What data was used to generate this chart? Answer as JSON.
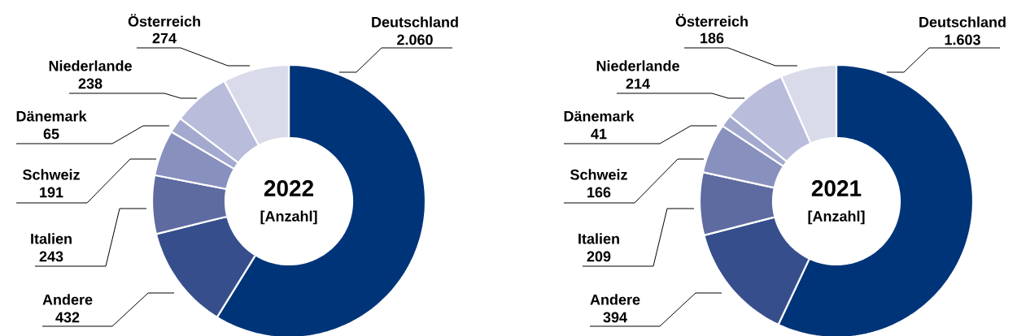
{
  "chart_data": [
    {
      "type": "donut",
      "title": "2022",
      "subtitle": "[Anzahl]",
      "categories": [
        "Deutschland",
        "Andere",
        "Italien",
        "Schweiz",
        "Dänemark",
        "Niederlande",
        "Österreich"
      ],
      "values": [
        2060,
        432,
        243,
        191,
        65,
        238,
        274
      ],
      "value_labels": [
        "2.060",
        "432",
        "243",
        "191",
        "65",
        "238",
        "274"
      ],
      "colors": [
        "#003478",
        "#364f8c",
        "#5e6ba1",
        "#8890bd",
        "#a4aacf",
        "#b9bcdb",
        "#d9dbea"
      ]
    },
    {
      "type": "donut",
      "title": "2021",
      "subtitle": "[Anzahl]",
      "categories": [
        "Deutschland",
        "Andere",
        "Italien",
        "Schweiz",
        "Dänemark",
        "Niederlande",
        "Österreich"
      ],
      "values": [
        1603,
        394,
        209,
        166,
        41,
        214,
        186
      ],
      "value_labels": [
        "1.603",
        "394",
        "209",
        "166",
        "41",
        "214",
        "186"
      ],
      "colors": [
        "#003478",
        "#364f8c",
        "#5e6ba1",
        "#8890bd",
        "#a4aacf",
        "#b9bcdb",
        "#d9dbea"
      ]
    }
  ]
}
